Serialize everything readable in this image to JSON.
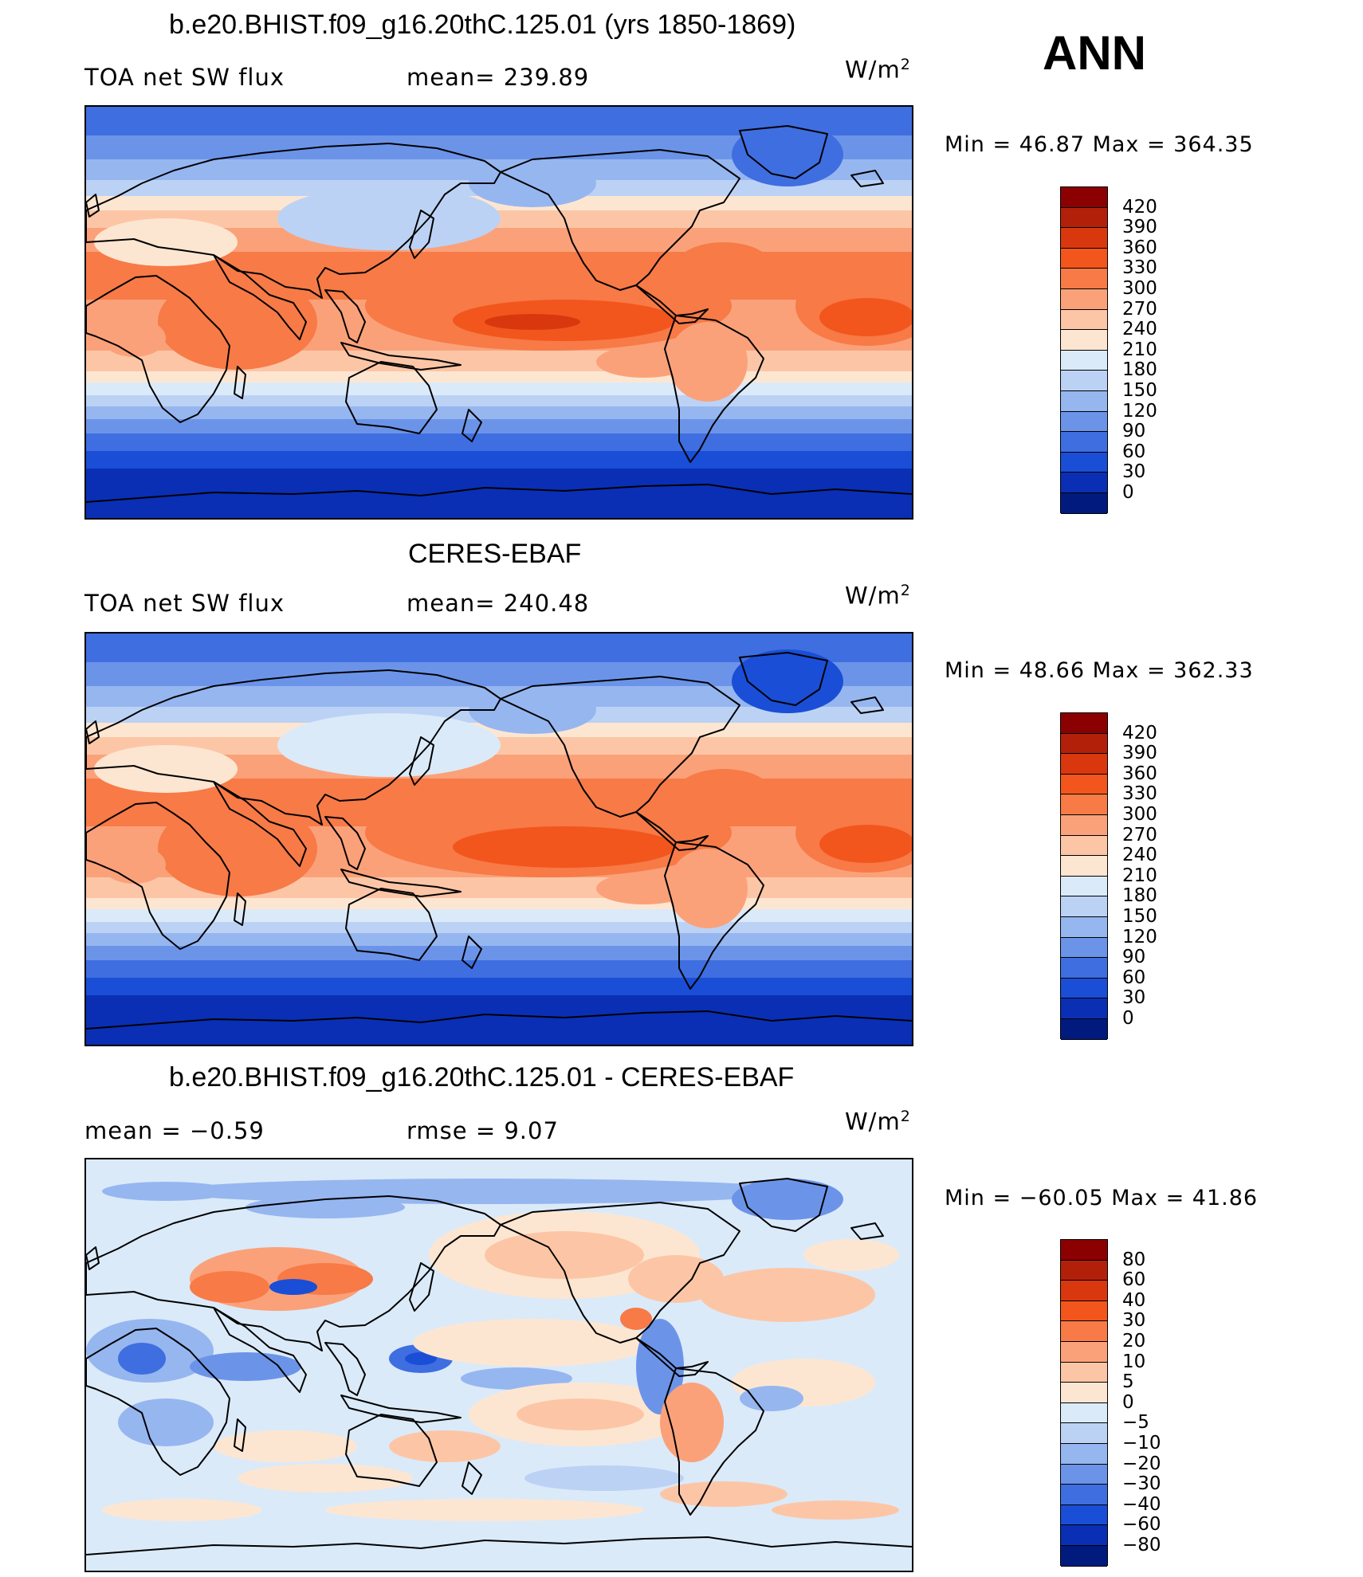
{
  "header": {
    "label": "ANN"
  },
  "panels": [
    {
      "title": "b.e20.BHIST.f09_g16.20thC.125.01 (yrs 1850-1869)",
      "left": "TOA net SW flux",
      "center": "mean= 239.89",
      "units": "W/m",
      "units_sup": "2",
      "minmax": "Min =   46.87 Max = 364.35",
      "levels": [
        "420",
        "390",
        "360",
        "330",
        "300",
        "270",
        "240",
        "210",
        "180",
        "150",
        "120",
        "90",
        "60",
        "30",
        "0"
      ],
      "colors": [
        "#8b0000",
        "#b3200a",
        "#d9380f",
        "#f2561d",
        "#f77a47",
        "#fba17a",
        "#fcc6a6",
        "#fde6d1",
        "#dbeaf9",
        "#bcd2f5",
        "#96b6f0",
        "#6b94e9",
        "#3f6ee0",
        "#1a4ed6",
        "#0a2fb4",
        "#001a7e"
      ],
      "map_style": "model"
    },
    {
      "title": "CERES-EBAF",
      "left": "TOA net SW flux",
      "center": "mean= 240.48",
      "units": "W/m",
      "units_sup": "2",
      "minmax": "Min =   48.66 Max = 362.33",
      "levels": [
        "420",
        "390",
        "360",
        "330",
        "300",
        "270",
        "240",
        "210",
        "180",
        "150",
        "120",
        "90",
        "60",
        "30",
        "0"
      ],
      "colors": [
        "#8b0000",
        "#b3200a",
        "#d9380f",
        "#f2561d",
        "#f77a47",
        "#fba17a",
        "#fcc6a6",
        "#fde6d1",
        "#dbeaf9",
        "#bcd2f5",
        "#96b6f0",
        "#6b94e9",
        "#3f6ee0",
        "#1a4ed6",
        "#0a2fb4",
        "#001a7e"
      ],
      "map_style": "obs"
    },
    {
      "title": "b.e20.BHIST.f09_g16.20thC.125.01 - CERES-EBAF",
      "left": "mean =   −0.59",
      "center": "rmse =    9.07",
      "units": "W/m",
      "units_sup": "2",
      "minmax": "Min = −60.05 Max =   41.86",
      "levels": [
        "80",
        "60",
        "40",
        "30",
        "20",
        "10",
        "5",
        "0",
        "−5",
        "−10",
        "−20",
        "−30",
        "−40",
        "−60",
        "−80"
      ],
      "colors": [
        "#8b0000",
        "#b3200a",
        "#d9380f",
        "#f2561d",
        "#f77a47",
        "#fba17a",
        "#fcc6a6",
        "#fde6d1",
        "#dbeaf9",
        "#bcd2f5",
        "#96b6f0",
        "#6b94e9",
        "#3f6ee0",
        "#1a4ed6",
        "#0a2fb4",
        "#001a7e"
      ],
      "map_style": "diff"
    }
  ]
}
